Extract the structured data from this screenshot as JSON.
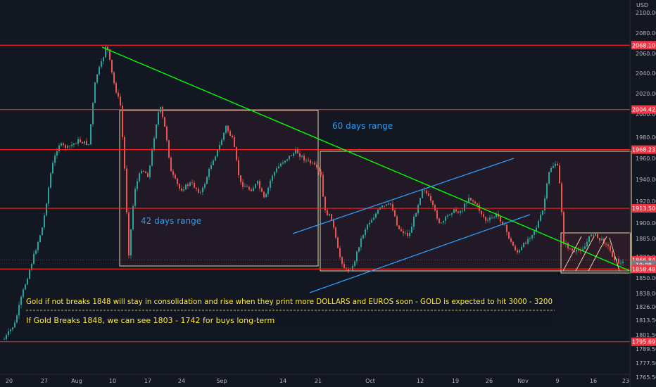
{
  "chart_data": {
    "type": "candlestick",
    "currency_label": "USD",
    "y_ticks": [
      "2100.00",
      "2080.00",
      "2060.00",
      "2040.00",
      "2020.00",
      "2000.00",
      "1980.00",
      "1960.00",
      "1940.00",
      "1920.00",
      "1900.00",
      "1885.00",
      "1870.00",
      "1850.00",
      "1838.00",
      "1826.00",
      "1813.50",
      "1801.50",
      "1789.50",
      "1777.50",
      "1765.50"
    ],
    "x_ticks": [
      "20",
      "27",
      "Aug",
      "10",
      "17",
      "24",
      "Sep",
      "14",
      "21",
      "Oct",
      "12",
      "19",
      "26",
      "Nov",
      "9",
      "16",
      "23"
    ],
    "price_tags": [
      {
        "label": "2068.10",
        "value": 2068.1,
        "color": "#f23645"
      },
      {
        "label": "2004.42",
        "value": 2004.42,
        "color": "#f23645"
      },
      {
        "label": "1968.23",
        "value": 1968.23,
        "color": "#f23645"
      },
      {
        "label": "1913.50",
        "value": 1913.5,
        "color": "#f23645"
      },
      {
        "label": "1866.84",
        "value": 1866.84,
        "color": "#f23645"
      },
      {
        "label": "19:08",
        "value": 1862.5,
        "color": "#787b86"
      },
      {
        "label": "1858.48",
        "value": 1858.48,
        "color": "#f23645"
      },
      {
        "label": "1795.69",
        "value": 1795.69,
        "color": "#f23645"
      }
    ],
    "annotations": {
      "range42": "42 days range",
      "range60": "60 days range",
      "note1": "Gold if not breaks 1848 will stay in consolidation and rise when they print more DOLLARS and EUROS soon - GOLD is expected to hit 3000 - 3200",
      "note2": "If Gold Breaks 1848, we can see 1803 - 1742 for buys long-term"
    },
    "colors": {
      "up": "#26a69a",
      "down": "#ef5350",
      "hline": "#ff1e1e",
      "trend": "#00ff00",
      "channel": "#2a9df4",
      "box": "#e3d7a8",
      "note": "#ffeb3b",
      "bg": "#131722",
      "axis_text": "#b2b5be"
    }
  }
}
